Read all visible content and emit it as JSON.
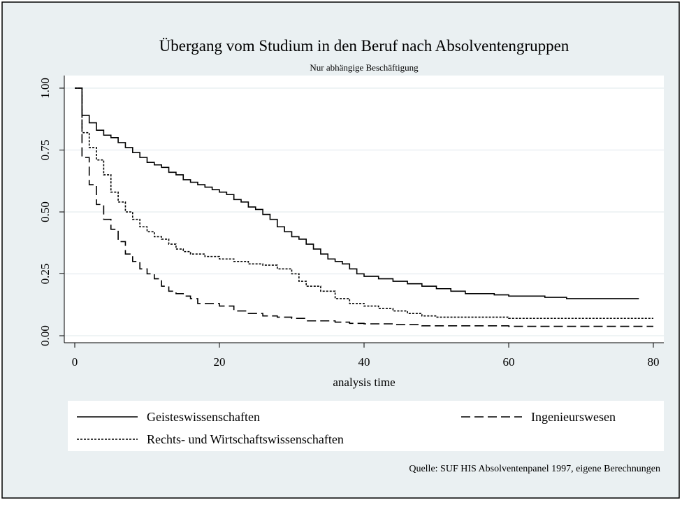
{
  "chart_data": {
    "type": "step",
    "title": "Übergang vom Studium in den Beruf nach Absolventengruppen",
    "subtitle": "Nur abhängige Beschäftigung",
    "xlabel": "analysis time",
    "note": "Quelle: SUF HIS Absolventenpanel 1997, eigene Berechnungen",
    "xlim": [
      0,
      80
    ],
    "xticks": [
      0,
      20,
      40,
      60,
      80
    ],
    "ylim": [
      0,
      1
    ],
    "yticks": [
      {
        "value": 0,
        "label": "0.00"
      },
      {
        "value": 0.25,
        "label": "0.25"
      },
      {
        "value": 0.5,
        "label": "0.50"
      },
      {
        "value": 0.75,
        "label": "0.75"
      },
      {
        "value": 1,
        "label": "1.00"
      }
    ],
    "grid": true,
    "series": [
      {
        "name": "Geisteswissenschaften",
        "color": "#000000",
        "dash": "solid",
        "x": [
          0,
          1,
          2,
          3,
          4,
          5,
          6,
          7,
          8,
          9,
          10,
          11,
          12,
          13,
          14,
          15,
          16,
          17,
          18,
          19,
          20,
          21,
          22,
          23,
          24,
          25,
          26,
          27,
          28,
          29,
          30,
          31,
          32,
          33,
          34,
          35,
          36,
          37,
          38,
          39,
          40,
          42,
          44,
          46,
          48,
          50,
          52,
          54,
          58,
          60,
          65,
          68,
          78
        ],
        "values": [
          1.0,
          0.89,
          0.86,
          0.83,
          0.81,
          0.8,
          0.78,
          0.76,
          0.74,
          0.72,
          0.7,
          0.69,
          0.68,
          0.66,
          0.65,
          0.63,
          0.62,
          0.61,
          0.6,
          0.59,
          0.58,
          0.57,
          0.55,
          0.54,
          0.52,
          0.51,
          0.49,
          0.47,
          0.44,
          0.42,
          0.4,
          0.39,
          0.37,
          0.35,
          0.33,
          0.31,
          0.3,
          0.29,
          0.27,
          0.25,
          0.24,
          0.23,
          0.22,
          0.21,
          0.2,
          0.19,
          0.18,
          0.17,
          0.165,
          0.16,
          0.155,
          0.15,
          0.15
        ]
      },
      {
        "name": "Ingenieurswesen",
        "color": "#000000",
        "dash": "dashed",
        "x": [
          0,
          1,
          2,
          3,
          4,
          5,
          6,
          7,
          8,
          9,
          10,
          11,
          12,
          13,
          14,
          15,
          16,
          17,
          20,
          22,
          24,
          26,
          28,
          30,
          32,
          36,
          38,
          40,
          44,
          48,
          60,
          80
        ],
        "values": [
          1.0,
          0.72,
          0.61,
          0.53,
          0.47,
          0.43,
          0.38,
          0.33,
          0.3,
          0.27,
          0.25,
          0.23,
          0.2,
          0.18,
          0.17,
          0.16,
          0.15,
          0.13,
          0.12,
          0.1,
          0.09,
          0.08,
          0.075,
          0.07,
          0.06,
          0.055,
          0.05,
          0.048,
          0.045,
          0.04,
          0.038,
          0.038
        ]
      },
      {
        "name": "Rechts- und Wirtschaftswissenschaften",
        "color": "#000000",
        "dash": "dotted",
        "x": [
          0,
          1,
          2,
          3,
          4,
          5,
          6,
          7,
          8,
          9,
          10,
          11,
          12,
          13,
          14,
          15,
          16,
          18,
          20,
          22,
          24,
          26,
          28,
          30,
          31,
          32,
          34,
          36,
          38,
          40,
          42,
          44,
          46,
          48,
          50,
          60,
          80
        ],
        "values": [
          1.0,
          0.82,
          0.76,
          0.71,
          0.65,
          0.58,
          0.54,
          0.5,
          0.47,
          0.44,
          0.42,
          0.4,
          0.39,
          0.37,
          0.35,
          0.34,
          0.33,
          0.32,
          0.31,
          0.3,
          0.29,
          0.285,
          0.27,
          0.25,
          0.22,
          0.2,
          0.18,
          0.15,
          0.13,
          0.12,
          0.11,
          0.1,
          0.09,
          0.08,
          0.075,
          0.07,
          0.07
        ]
      }
    ]
  }
}
